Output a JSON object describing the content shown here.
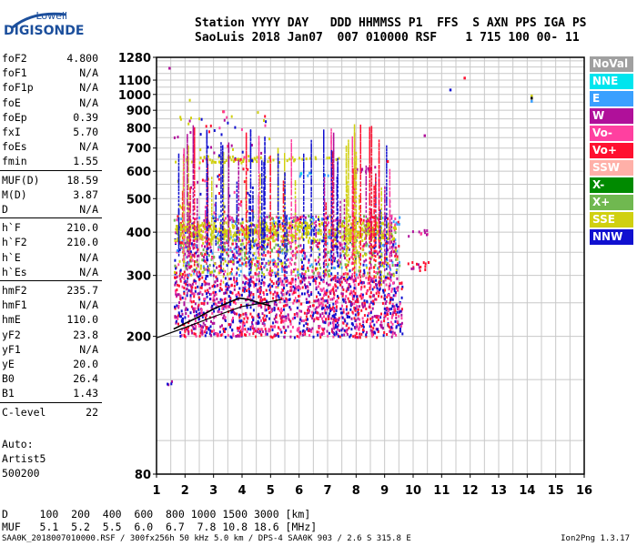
{
  "logo": {
    "line1": "Lowell",
    "line2": "DIGISONDE"
  },
  "header": {
    "labels_line": "Station YYYY DAY   DDD HHMMSS P1  FFS  S AXN PPS IGA PS",
    "values_line": "SaoLuis 2018 Jan07  007 010000 RSF    1 715 100 00- 11"
  },
  "params": [
    {
      "key": "foF2",
      "value": "4.800"
    },
    {
      "key": "foF1",
      "value": "N/A"
    },
    {
      "key": "foF1p",
      "value": "N/A"
    },
    {
      "key": "foE",
      "value": "N/A"
    },
    {
      "key": "foEp",
      "value": "0.39"
    },
    {
      "key": "fxI",
      "value": "5.70"
    },
    {
      "key": "foEs",
      "value": "N/A"
    },
    {
      "key": "fmin",
      "value": "1.55"
    },
    {
      "key": "MUF(D)",
      "value": "18.59"
    },
    {
      "key": "M(D)",
      "value": "3.87"
    },
    {
      "key": "D",
      "value": "N/A"
    },
    {
      "key": "h`F",
      "value": "210.0"
    },
    {
      "key": "h`F2",
      "value": "210.0"
    },
    {
      "key": "h`E",
      "value": "N/A"
    },
    {
      "key": "h`Es",
      "value": "N/A"
    },
    {
      "key": "hmF2",
      "value": "235.7"
    },
    {
      "key": "hmF1",
      "value": "N/A"
    },
    {
      "key": "hmE",
      "value": "110.0"
    },
    {
      "key": "yF2",
      "value": "23.8"
    },
    {
      "key": "yF1",
      "value": "N/A"
    },
    {
      "key": "yE",
      "value": "20.0"
    },
    {
      "key": "B0",
      "value": "26.4"
    },
    {
      "key": "B1",
      "value": "1.43"
    },
    {
      "key": "C-level",
      "value": "22"
    }
  ],
  "notes": [
    "Auto:",
    "Artist5",
    "500200"
  ],
  "legend": [
    {
      "label": "NoVal",
      "color": "#a0a0a0"
    },
    {
      "label": "NNE",
      "color": "#00e5ee"
    },
    {
      "label": "E",
      "color": "#3aa0ff"
    },
    {
      "label": "W",
      "color": "#b0109a"
    },
    {
      "label": "Vo-",
      "color": "#ff40a0"
    },
    {
      "label": "Vo+",
      "color": "#ff1030"
    },
    {
      "label": "SSW",
      "color": "#ffb0a8"
    },
    {
      "label": "X-",
      "color": "#008a00"
    },
    {
      "label": "X+",
      "color": "#70b850"
    },
    {
      "label": "SSE",
      "color": "#d0d010"
    },
    {
      "label": "NNW",
      "color": "#1010d0"
    }
  ],
  "muf_table": {
    "d_line": "D     100  200  400  600  800 1000 1500 3000 [km]",
    "muf_line": "MUF   5.1  5.2  5.5  6.0  6.7  7.8 10.8 18.6 [MHz]"
  },
  "footer": {
    "left": "SAA0K_2018007010000.RSF / 300fx256h 50 kHz 5.0 km / DPS-4 SAA0K 903 / 2.6 S 315.8 E",
    "right": "Ion2Png 1.3.17"
  },
  "chart_data": {
    "type": "scatter",
    "xlabel": "",
    "ylabel": "",
    "xlim": [
      1,
      16
    ],
    "ylim": [
      80,
      1280
    ],
    "y_scale": "log",
    "grid": true,
    "x_ticks": [
      "1",
      "2",
      "3",
      "4",
      "5",
      "6",
      "7",
      "8",
      "9",
      "10",
      "11",
      "12",
      "13",
      "14",
      "15",
      "16"
    ],
    "y_ticks": [
      {
        "value": 80,
        "label": "80"
      },
      {
        "value": 200,
        "label": "200"
      },
      {
        "value": 300,
        "label": "300"
      },
      {
        "value": 400,
        "label": "400"
      },
      {
        "value": 500,
        "label": "500"
      },
      {
        "value": 600,
        "label": "600"
      },
      {
        "value": 700,
        "label": "700"
      },
      {
        "value": 800,
        "label": "800"
      },
      {
        "value": 900,
        "label": "900"
      },
      {
        "value": 1000,
        "label": "1000"
      },
      {
        "value": 1100,
        "label": "1100"
      },
      {
        "value": 1280,
        "label": "1280"
      }
    ],
    "trace_clusters": [
      {
        "x": [
          1.6,
          9.6
        ],
        "y": [
          200,
          300
        ],
        "colors": [
          "#ff1030",
          "#b0109a",
          "#ff40a0",
          "#1010d0"
        ],
        "density": 0.55
      },
      {
        "x": [
          1.6,
          9.5
        ],
        "y": [
          300,
          450
        ],
        "colors": [
          "#b0109a",
          "#ff1030",
          "#ff40a0",
          "#1010d0",
          "#d0d010",
          "#70b850",
          "#3aa0ff"
        ],
        "density": 0.45
      },
      {
        "x": [
          1.6,
          9.3
        ],
        "y": [
          380,
          430
        ],
        "colors": [
          "#d0d010"
        ],
        "density": 0.55
      },
      {
        "x": [
          2.0,
          6.0
        ],
        "y": [
          640,
          670
        ],
        "colors": [
          "#d0d010"
        ],
        "density": 0.4
      },
      {
        "x": [
          6.0,
          7.4
        ],
        "y": [
          650,
          665
        ],
        "colors": [
          "#d0d010"
        ],
        "density": 0.35
      },
      {
        "x": [
          7.9,
          8.7
        ],
        "y": [
          600,
          625
        ],
        "colors": [
          "#b0109a"
        ],
        "density": 0.5
      },
      {
        "x": [
          5.8,
          7.0
        ],
        "y": [
          585,
          600
        ],
        "colors": [
          "#3aa0ff",
          "#00e5ee"
        ],
        "density": 0.35
      },
      {
        "x": [
          9.8,
          10.6
        ],
        "y": [
          310,
          330
        ],
        "colors": [
          "#ff1030",
          "#b0109a"
        ],
        "density": 0.35
      },
      {
        "x": [
          9.8,
          10.6
        ],
        "y": [
          390,
          410
        ],
        "colors": [
          "#b0109a",
          "#ff40a0"
        ],
        "density": 0.3
      },
      {
        "x": [
          2.4,
          5.0
        ],
        "y": [
          450,
          900
        ],
        "colors": [
          "#b0109a",
          "#ff1030",
          "#d0d010",
          "#ff40a0",
          "#1010d0"
        ],
        "density": 0.05
      },
      {
        "x": [
          1.6,
          2.2
        ],
        "y": [
          450,
          1000
        ],
        "colors": [
          "#b0109a",
          "#d0d010"
        ],
        "density": 0.04
      },
      {
        "x": [
          1.3,
          1.6
        ],
        "y": [
          145,
          150
        ],
        "colors": [
          "#b0109a",
          "#1010d0"
        ],
        "density": 0.5
      }
    ],
    "isolated_points": [
      {
        "x": 1.45,
        "y": 1190,
        "color": "#b0109a"
      },
      {
        "x": 11.8,
        "y": 1115,
        "color": "#ff1030"
      },
      {
        "x": 11.3,
        "y": 1030,
        "color": "#1010d0"
      },
      {
        "x": 14.15,
        "y": 990,
        "color": "#d0d010"
      },
      {
        "x": 14.15,
        "y": 975,
        "color": "#000000"
      },
      {
        "x": 14.15,
        "y": 955,
        "color": "#3aa0ff"
      },
      {
        "x": 10.4,
        "y": 760,
        "color": "#b0109a"
      },
      {
        "x": 9.1,
        "y": 640,
        "color": "#ff1030"
      }
    ],
    "profile_curve": {
      "x": [
        1.6,
        2.0,
        2.5,
        3.0,
        3.5,
        3.9,
        4.2,
        4.6,
        5.0
      ],
      "y": [
        210,
        218,
        228,
        240,
        250,
        258,
        256,
        250,
        245
      ]
    },
    "lower_line": {
      "x": [
        1.0,
        2.0,
        3.0,
        4.0,
        5.0,
        5.4
      ],
      "y": [
        198,
        212,
        228,
        244,
        252,
        256
      ]
    }
  }
}
